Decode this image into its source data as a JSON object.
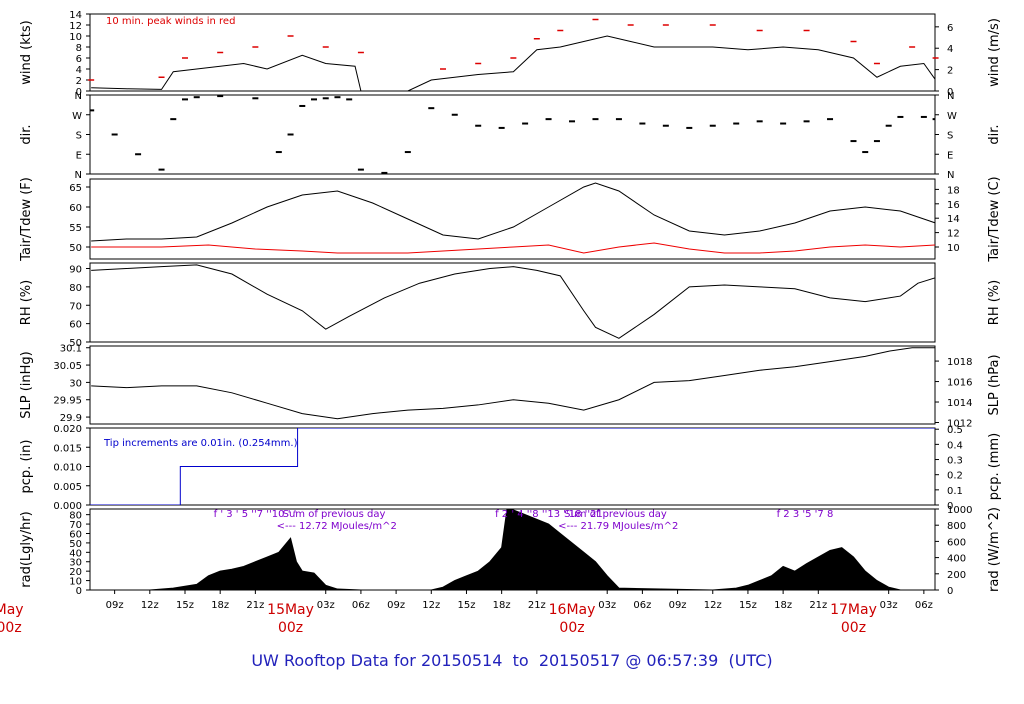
{
  "title": "UW Rooftop Data for 20150514  to  20150517 @ 06:57:39  (UTC)",
  "colors": {
    "series": "#000000",
    "peak": "#dd0000",
    "dewpoint": "#ee0000",
    "precip": "#0000cc",
    "annotation": "#7f00cc",
    "date": "#cc0000",
    "title": "#0000cc"
  },
  "time_axis": {
    "unit": "hours since 2015-05-14 00z",
    "range": [
      6.9,
      78.95
    ],
    "ticks": [
      {
        "h": 9,
        "label": "09z"
      },
      {
        "h": 12,
        "label": "12z"
      },
      {
        "h": 15,
        "label": "15z"
      },
      {
        "h": 18,
        "label": "18z"
      },
      {
        "h": 21,
        "label": "21z"
      },
      {
        "h": 27,
        "label": "03z"
      },
      {
        "h": 30,
        "label": "06z"
      },
      {
        "h": 33,
        "label": "09z"
      },
      {
        "h": 36,
        "label": "12z"
      },
      {
        "h": 39,
        "label": "15z"
      },
      {
        "h": 42,
        "label": "18z"
      },
      {
        "h": 45,
        "label": "21z"
      },
      {
        "h": 51,
        "label": "03z"
      },
      {
        "h": 54,
        "label": "06z"
      },
      {
        "h": 57,
        "label": "09z"
      },
      {
        "h": 60,
        "label": "12z"
      },
      {
        "h": 63,
        "label": "15z"
      },
      {
        "h": 66,
        "label": "18z"
      },
      {
        "h": 69,
        "label": "21z"
      },
      {
        "h": 75,
        "label": "03z"
      },
      {
        "h": 78,
        "label": "06z"
      }
    ],
    "dates": [
      {
        "h": 0,
        "top": "May",
        "bottom": "00z"
      },
      {
        "h": 24,
        "top": "15May",
        "bottom": "00z"
      },
      {
        "h": 48,
        "top": "16May",
        "bottom": "00z"
      },
      {
        "h": 72,
        "top": "17May",
        "bottom": "00z"
      }
    ]
  },
  "chart_data": [
    {
      "type": "line",
      "panel": "wind",
      "ylabel": "wind (kts)",
      "ylabel_right": "wind (m/s)",
      "ylim": [
        0,
        14
      ],
      "yticks": [
        0,
        2,
        4,
        6,
        8,
        10,
        12,
        14
      ],
      "ylim_right": [
        0,
        7.2
      ],
      "yticks_right": [
        0,
        2,
        4,
        6
      ],
      "annotation": "10 min. peak winds in red",
      "series": [
        {
          "values_hint": "mean wind",
          "x": [
            7,
            10,
            13,
            14,
            16,
            20,
            22,
            25,
            27,
            29.5,
            30,
            32,
            34,
            36,
            40,
            43,
            45,
            47,
            49,
            51,
            53,
            55,
            57,
            60,
            63,
            66,
            69,
            72,
            74,
            76,
            78,
            79
          ],
          "y": [
            0.6,
            0.4,
            0.3,
            3.5,
            4,
            5,
            4,
            6.5,
            5,
            4.5,
            0,
            0,
            0,
            2,
            3,
            3.5,
            7.5,
            8,
            9,
            10,
            9,
            8,
            8,
            8,
            7.5,
            8,
            7.5,
            6,
            2.5,
            4.5,
            5,
            2
          ]
        },
        {
          "values_hint": "10 min peak",
          "x": [
            7,
            13,
            15,
            18,
            21,
            24,
            27,
            30,
            37,
            40,
            43,
            45,
            47,
            50,
            53,
            56,
            60,
            64,
            68,
            72,
            74,
            77,
            79
          ],
          "y": [
            2,
            2.5,
            6,
            7,
            8,
            10,
            8,
            7,
            4,
            5,
            6,
            9.5,
            11,
            13,
            12,
            12,
            12,
            11,
            11,
            9,
            5,
            8,
            6
          ]
        }
      ]
    },
    {
      "type": "scatter",
      "panel": "dir",
      "ylabel": "dir.",
      "ylabel_right": "dir.",
      "ylim": [
        0,
        360
      ],
      "yticks": [
        {
          "v": 0,
          "l": "N"
        },
        {
          "v": 90,
          "l": "E"
        },
        {
          "v": 180,
          "l": "S"
        },
        {
          "v": 270,
          "l": "W"
        },
        {
          "v": 360,
          "l": "N"
        }
      ],
      "series": [
        {
          "x": [
            7,
            9,
            11,
            13,
            14,
            15,
            16,
            18,
            21,
            23,
            24,
            25,
            26,
            27,
            28,
            29,
            30,
            32,
            34,
            36,
            38,
            40,
            42,
            44,
            46,
            48,
            50,
            52,
            54,
            56,
            58,
            60,
            62,
            64,
            66,
            68,
            70,
            72,
            73,
            74,
            75,
            76,
            78,
            79
          ],
          "y": [
            290,
            180,
            90,
            20,
            250,
            340,
            350,
            355,
            345,
            100,
            180,
            310,
            340,
            345,
            350,
            340,
            20,
            5,
            100,
            300,
            270,
            220,
            210,
            230,
            250,
            240,
            250,
            250,
            230,
            220,
            210,
            220,
            230,
            240,
            230,
            240,
            250,
            150,
            100,
            150,
            220,
            260,
            260,
            250
          ]
        }
      ]
    },
    {
      "type": "line",
      "panel": "temp",
      "ylabel": "Tair/Tdew (F)",
      "ylabel_right": "Tair/Tdew (C)",
      "ylim": [
        47,
        67
      ],
      "yticks": [
        50,
        55,
        60,
        65
      ],
      "ylim_right": [
        8.33,
        19.44
      ],
      "yticks_right": [
        10,
        12,
        14,
        16,
        18
      ],
      "series": [
        {
          "name": "Tair",
          "x": [
            7,
            10,
            13,
            16,
            19,
            22,
            25,
            28,
            31,
            34,
            37,
            40,
            43,
            46,
            49,
            50,
            52,
            55,
            58,
            61,
            64,
            67,
            70,
            73,
            76,
            79
          ],
          "y": [
            51.5,
            52,
            52,
            52.5,
            56,
            60,
            63,
            64,
            61,
            57,
            53,
            52,
            55,
            60,
            65,
            66,
            64,
            58,
            54,
            53,
            54,
            56,
            59,
            60,
            59,
            56
          ]
        },
        {
          "name": "Tdew",
          "color": "#ee0000",
          "x": [
            7,
            13,
            17,
            21,
            25,
            28,
            31,
            34,
            37,
            40,
            43,
            46,
            49,
            52,
            55,
            58,
            61,
            64,
            67,
            70,
            73,
            76,
            79
          ],
          "y": [
            50,
            50,
            50.5,
            49.5,
            49,
            48.5,
            48.5,
            48.5,
            49,
            49.5,
            50,
            50.5,
            48.5,
            50,
            51,
            49.5,
            48.5,
            48.5,
            49,
            50,
            50.5,
            50,
            50.5
          ]
        }
      ]
    },
    {
      "type": "line",
      "panel": "rh",
      "ylabel": "RH (%)",
      "ylabel_right": "RH (%)",
      "ylim": [
        50,
        93
      ],
      "yticks": [
        50,
        60,
        70,
        80,
        90
      ],
      "series": [
        {
          "x": [
            7,
            10,
            13,
            16,
            19,
            22,
            25,
            27,
            29,
            32,
            35,
            38,
            41,
            43,
            45,
            47,
            49,
            50,
            52,
            55,
            58,
            61,
            64,
            67,
            70,
            73,
            76,
            77.5,
            79
          ],
          "y": [
            89,
            90,
            91,
            92,
            87,
            76,
            67,
            57,
            64,
            74,
            82,
            87,
            90,
            91,
            89,
            86,
            67,
            58,
            52,
            65,
            80,
            81,
            80,
            79,
            74,
            72,
            75,
            82,
            85
          ]
        }
      ]
    },
    {
      "type": "line",
      "panel": "slp",
      "ylabel": "SLP (inHg)",
      "ylabel_right": "SLP (hPa)",
      "ylim": [
        29.88,
        30.105
      ],
      "yticks": [
        29.9,
        29.95,
        30.0,
        30.05,
        30.1
      ],
      "yticks_right": [
        1012,
        1014,
        1016,
        1018
      ],
      "series": [
        {
          "x": [
            7,
            10,
            13,
            16,
            19,
            22,
            25,
            28,
            31,
            34,
            37,
            40,
            43,
            46,
            49,
            52,
            55,
            58,
            61,
            64,
            67,
            70,
            73,
            75,
            77,
            79
          ],
          "y": [
            29.99,
            29.985,
            29.99,
            29.99,
            29.97,
            29.94,
            29.91,
            29.895,
            29.91,
            29.92,
            29.925,
            29.935,
            29.95,
            29.94,
            29.92,
            29.95,
            30.0,
            30.005,
            30.02,
            30.035,
            30.045,
            30.06,
            30.075,
            30.09,
            30.1,
            30.1
          ]
        }
      ]
    },
    {
      "type": "line",
      "panel": "pcp",
      "ylabel": "pcp. (in)",
      "ylabel_right": "pcp. (mm)",
      "ylim": [
        0,
        0.02
      ],
      "yticks": [
        0.0,
        0.005,
        0.01,
        0.015,
        0.02
      ],
      "yticks_labels": [
        "0.000",
        "0.005",
        "0.010",
        "0.015",
        "0.020"
      ],
      "yticks_right": [
        0,
        0.1,
        0.2,
        0.3,
        0.4,
        0.5
      ],
      "ylim_right": [
        0,
        0.508
      ],
      "annotation": "Tip increments are 0.01in. (0.254mm.)",
      "series": [
        {
          "name": "pcp",
          "step": true,
          "x": [
            6.9,
            14.6,
            14.6,
            24.6,
            24.6,
            78.95
          ],
          "y": [
            0,
            0,
            0.01,
            0.01,
            0.02,
            0.02
          ]
        }
      ]
    },
    {
      "type": "area",
      "panel": "rad",
      "ylabel": "rad(Lgly/hr)",
      "ylabel_right": "rad (W/m^2)",
      "ylim": [
        0,
        86
      ],
      "yticks": [
        0,
        10,
        20,
        30,
        40,
        50,
        60,
        70,
        80
      ],
      "yticks_right": [
        0,
        200,
        400,
        600,
        800,
        1000
      ],
      "ylim_right": [
        0,
        1000
      ],
      "annotation_days": [
        {
          "h": 20,
          "hours": "f   '   3   '  5 ''7  ''10 '   '",
          "sum_label": "Sum of previous day",
          "sum_value": "<--- 12.72 MJoules/m^2"
        },
        {
          "h": 44,
          "hours": "f   2   '  4 ''8 ''13 ''18 ''21",
          "sum_label": "Sum of previous day",
          "sum_value": "<--- 21.79 MJoules/m^2"
        },
        {
          "h": 68,
          "hours": "f    2     3  '5  '7    8",
          "sum_label": "",
          "sum_value": ""
        }
      ],
      "series": [
        {
          "x": [
            12,
            14,
            16,
            17,
            18,
            19,
            20,
            21,
            22,
            23,
            24,
            24.5,
            25,
            26,
            27,
            28,
            30,
            36,
            37,
            38,
            39,
            40,
            41,
            42,
            42.5,
            43,
            44,
            45,
            46,
            47,
            48,
            49,
            50,
            51,
            52,
            60,
            62,
            63,
            64,
            65,
            66,
            67,
            68,
            69,
            70,
            71,
            72,
            73,
            74,
            75,
            76
          ],
          "y": [
            0,
            2,
            6,
            15,
            20,
            22,
            25,
            30,
            35,
            40,
            55,
            30,
            20,
            18,
            5,
            1,
            0,
            0,
            3,
            10,
            15,
            20,
            30,
            45,
            90,
            85,
            80,
            75,
            70,
            60,
            50,
            40,
            30,
            15,
            2,
            0,
            2,
            5,
            10,
            15,
            25,
            20,
            28,
            35,
            42,
            45,
            35,
            20,
            10,
            3,
            0
          ]
        }
      ]
    }
  ]
}
